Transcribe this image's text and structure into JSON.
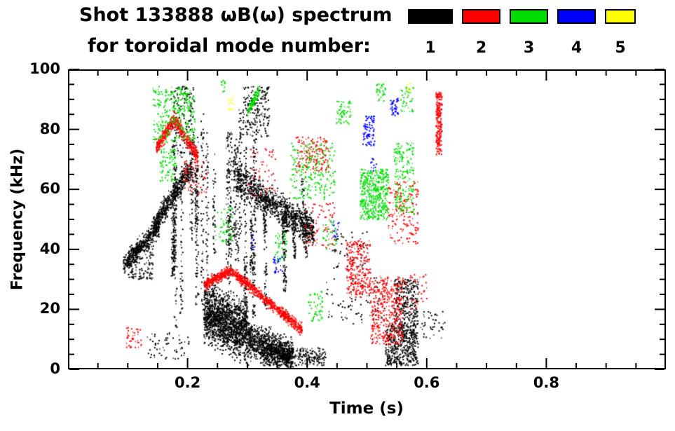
{
  "header": {
    "title_line1": "Shot 133888 ωB(ω) spectrum",
    "title_line2": "for toroidal mode number:",
    "legend": [
      {
        "mode": "1",
        "color": "#000000"
      },
      {
        "mode": "2",
        "color": "#ff0000"
      },
      {
        "mode": "3",
        "color": "#00dd00"
      },
      {
        "mode": "4",
        "color": "#0000ff"
      },
      {
        "mode": "5",
        "color": "#ffff00"
      }
    ]
  },
  "chart_data": {
    "type": "scatter",
    "title": "Shot 133888 ωB(ω) spectrum for toroidal mode number: 1 2 3 4 5",
    "xlabel": "Time (s)",
    "ylabel": "Frequency (kHz)",
    "xlim": [
      0.0,
      1.0
    ],
    "ylim": [
      0,
      100
    ],
    "grid": false,
    "legend_position": "top-right",
    "x_ticks": [
      {
        "v": 0.2,
        "label": "0.2"
      },
      {
        "v": 0.4,
        "label": "0.4"
      },
      {
        "v": 0.6,
        "label": "0.6"
      },
      {
        "v": 0.8,
        "label": "0.8"
      }
    ],
    "x_minor_step": 0.05,
    "y_ticks": [
      {
        "v": 0,
        "label": "0"
      },
      {
        "v": 20,
        "label": "20"
      },
      {
        "v": 40,
        "label": "40"
      },
      {
        "v": 60,
        "label": "60"
      },
      {
        "v": 80,
        "label": "80"
      },
      {
        "v": 100,
        "label": "100"
      }
    ],
    "y_minor_step": 5,
    "series": [
      {
        "name": "n=1",
        "color": "#000000",
        "clusters": [
          {
            "type": "band",
            "t": [
              0.09,
              0.15
            ],
            "f_start": 35,
            "f_end": 48,
            "spread": 3,
            "n": 420
          },
          {
            "type": "band",
            "t": [
              0.14,
              0.205
            ],
            "f_start": 48,
            "f_end": 68,
            "spread": 3.5,
            "n": 520
          },
          {
            "type": "box",
            "t": [
              0.098,
              0.14
            ],
            "f": [
              30,
              42
            ],
            "n": 160
          },
          {
            "type": "vstreaks",
            "streaks": 24,
            "t": [
              0.165,
              0.345
            ],
            "f": [
              8,
              92
            ],
            "n": 1400
          },
          {
            "type": "band",
            "t": [
              0.28,
              0.41
            ],
            "f_start": 64,
            "f_end": 46,
            "spread": 5,
            "n": 950
          },
          {
            "type": "band",
            "t": [
              0.225,
              0.3
            ],
            "f_start": 19,
            "f_end": 12,
            "spread": 9,
            "n": 1500
          },
          {
            "type": "band",
            "t": [
              0.3,
              0.375
            ],
            "f_start": 10,
            "f_end": 4,
            "spread": 5,
            "n": 900
          },
          {
            "type": "box",
            "t": [
              0.32,
              0.43
            ],
            "f": [
              1,
              7
            ],
            "n": 350
          },
          {
            "type": "box",
            "t": [
              0.29,
              0.335
            ],
            "f": [
              78,
              95
            ],
            "n": 200
          },
          {
            "type": "box",
            "t": [
              0.17,
              0.21
            ],
            "f": [
              72,
              95
            ],
            "n": 150
          },
          {
            "type": "box",
            "t": [
              0.53,
              0.585
            ],
            "f": [
              1,
              15
            ],
            "n": 480
          },
          {
            "type": "box",
            "t": [
              0.545,
              0.585
            ],
            "f": [
              15,
              30
            ],
            "n": 260
          },
          {
            "type": "box",
            "t": [
              0.43,
              0.53
            ],
            "f": [
              15,
              32
            ],
            "n": 80
          },
          {
            "type": "box",
            "t": [
              0.44,
              0.5
            ],
            "f": [
              33,
              46
            ],
            "n": 50
          },
          {
            "type": "box",
            "t": [
              0.59,
              0.63
            ],
            "f": [
              10,
              20
            ],
            "n": 40
          },
          {
            "type": "box",
            "t": [
              0.13,
              0.2
            ],
            "f": [
              3,
              12
            ],
            "n": 60
          },
          {
            "type": "vstreaks",
            "streaks": 6,
            "t": [
              0.35,
              0.4
            ],
            "f": [
              25,
              72
            ],
            "n": 320
          }
        ]
      },
      {
        "name": "n=2",
        "color": "#ff0000",
        "clusters": [
          {
            "type": "band",
            "t": [
              0.145,
              0.175
            ],
            "f_start": 74,
            "f_end": 84,
            "spread": 2.5,
            "n": 230
          },
          {
            "type": "band",
            "t": [
              0.175,
              0.215
            ],
            "f_start": 84,
            "f_end": 71,
            "spread": 2.5,
            "n": 270
          },
          {
            "type": "band",
            "t": [
              0.225,
              0.27
            ],
            "f_start": 28,
            "f_end": 33,
            "spread": 1.8,
            "n": 280
          },
          {
            "type": "band",
            "t": [
              0.27,
              0.39
            ],
            "f_start": 33,
            "f_end": 13,
            "spread": 1.8,
            "n": 620
          },
          {
            "type": "box",
            "t": [
              0.38,
              0.435
            ],
            "f": [
              66,
              78
            ],
            "n": 150
          },
          {
            "type": "box",
            "t": [
              0.395,
              0.445
            ],
            "f": [
              40,
              56
            ],
            "n": 70
          },
          {
            "type": "box",
            "t": [
              0.465,
              0.505
            ],
            "f": [
              24,
              43
            ],
            "n": 270
          },
          {
            "type": "box",
            "t": [
              0.505,
              0.56
            ],
            "f": [
              8,
              31
            ],
            "n": 400
          },
          {
            "type": "box",
            "t": [
              0.535,
              0.585
            ],
            "f": [
              42,
              63
            ],
            "n": 170
          },
          {
            "type": "box",
            "t": [
              0.615,
              0.625
            ],
            "f": [
              72,
              93
            ],
            "n": 220
          },
          {
            "type": "box",
            "t": [
              0.19,
              0.23
            ],
            "f": [
              58,
              70
            ],
            "n": 60
          },
          {
            "type": "box",
            "t": [
              0.095,
              0.12
            ],
            "f": [
              7,
              14
            ],
            "n": 40
          },
          {
            "type": "box",
            "t": [
              0.3,
              0.345
            ],
            "f": [
              58,
              74
            ],
            "n": 50
          },
          {
            "type": "box",
            "t": [
              0.56,
              0.6
            ],
            "f": [
              20,
              32
            ],
            "n": 40
          }
        ]
      },
      {
        "name": "n=3",
        "color": "#00dd00",
        "clusters": [
          {
            "type": "box",
            "t": [
              0.14,
              0.21
            ],
            "f": [
              76,
              95
            ],
            "n": 300
          },
          {
            "type": "box",
            "t": [
              0.15,
              0.18
            ],
            "f": [
              63,
              74
            ],
            "n": 80
          },
          {
            "type": "band",
            "t": [
              0.298,
              0.318
            ],
            "f_start": 86,
            "f_end": 94,
            "spread": 2,
            "n": 100
          },
          {
            "type": "box",
            "t": [
              0.37,
              0.445
            ],
            "f": [
              57,
              76
            ],
            "n": 230
          },
          {
            "type": "box",
            "t": [
              0.488,
              0.535
            ],
            "f": [
              50,
              67
            ],
            "n": 450
          },
          {
            "type": "box",
            "t": [
              0.545,
              0.578
            ],
            "f": [
              52,
              76
            ],
            "n": 190
          },
          {
            "type": "box",
            "t": [
              0.448,
              0.472
            ],
            "f": [
              82,
              90
            ],
            "n": 60
          },
          {
            "type": "box",
            "t": [
              0.515,
              0.53
            ],
            "f": [
              90,
              96
            ],
            "n": 30
          },
          {
            "type": "box",
            "t": [
              0.555,
              0.578
            ],
            "f": [
              86,
              95
            ],
            "n": 40
          },
          {
            "type": "box",
            "t": [
              0.4,
              0.425
            ],
            "f": [
              16,
              26
            ],
            "n": 50
          },
          {
            "type": "box",
            "t": [
              0.345,
              0.365
            ],
            "f": [
              36,
              46
            ],
            "n": 40
          },
          {
            "type": "box",
            "t": [
              0.245,
              0.275
            ],
            "f": [
              42,
              55
            ],
            "n": 50
          },
          {
            "type": "box",
            "t": [
              0.425,
              0.45
            ],
            "f": [
              40,
              50
            ],
            "n": 30
          },
          {
            "type": "box",
            "t": [
              0.252,
              0.262
            ],
            "f": [
              93,
              97
            ],
            "n": 12
          }
        ]
      },
      {
        "name": "n=4",
        "color": "#0000ff",
        "clusters": [
          {
            "type": "box",
            "t": [
              0.492,
              0.512
            ],
            "f": [
              75,
              85
            ],
            "n": 80
          },
          {
            "type": "box",
            "t": [
              0.538,
              0.552
            ],
            "f": [
              85,
              91
            ],
            "n": 40
          },
          {
            "type": "box",
            "t": [
              0.342,
              0.357
            ],
            "f": [
              32,
              38
            ],
            "n": 25
          },
          {
            "type": "box",
            "t": [
              0.44,
              0.452
            ],
            "f": [
              44,
              50
            ],
            "n": 15
          },
          {
            "type": "box",
            "t": [
              0.505,
              0.515
            ],
            "f": [
              66,
              71
            ],
            "n": 12
          },
          {
            "type": "box",
            "t": [
              0.3,
              0.31
            ],
            "f": [
              40,
              45
            ],
            "n": 10
          }
        ]
      },
      {
        "name": "n=5",
        "color": "#ffff00",
        "clusters": [
          {
            "type": "box",
            "t": [
              0.266,
              0.274
            ],
            "f": [
              87,
              92
            ],
            "n": 10
          },
          {
            "type": "box",
            "t": [
              0.565,
              0.573
            ],
            "f": [
              93,
              96
            ],
            "n": 6
          }
        ]
      }
    ]
  }
}
